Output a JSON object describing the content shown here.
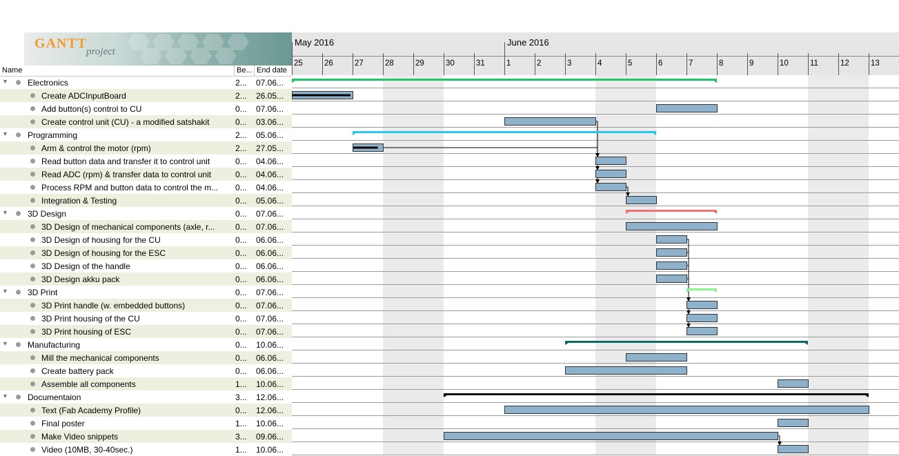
{
  "app": {
    "logo_brand": "GANTT",
    "logo_sub": "project"
  },
  "columns": {
    "name": "Name",
    "begin": "Be...",
    "end": "End date"
  },
  "timeline": {
    "months": [
      "May 2016",
      "June 2016"
    ],
    "days": [
      "25",
      "26",
      "27",
      "28",
      "29",
      "30",
      "31",
      "1",
      "2",
      "3",
      "4",
      "5",
      "6",
      "7",
      "8",
      "9",
      "10",
      "11",
      "12",
      "13"
    ]
  },
  "colors": {
    "row_alt": "#efefdf",
    "weekend": "#ebebeb",
    "task_bar": "#8eb2cb",
    "task_border": "#333333"
  },
  "tasks": [
    {
      "name": "Electronics",
      "begin": "2...",
      "end": "07.06...",
      "group": true,
      "color": "#1ec466",
      "start": 0,
      "stop": 14
    },
    {
      "name": "Create ADCInputBoard",
      "begin": "2...",
      "end": "26.05...",
      "group": false,
      "start": 0,
      "stop": 2,
      "progress": 1.0
    },
    {
      "name": "Add button(s) control to CU",
      "begin": "0...",
      "end": "07.06...",
      "group": false,
      "start": 12,
      "stop": 14
    },
    {
      "name": "Create control unit (CU) - a modified satshakit",
      "begin": "0...",
      "end": "03.06...",
      "group": false,
      "start": 7,
      "stop": 10
    },
    {
      "name": "Programming",
      "begin": "2...",
      "end": "05.06...",
      "group": true,
      "color": "#28c7ee",
      "start": 2,
      "stop": 12
    },
    {
      "name": "Arm & control the motor (rpm)",
      "begin": "2...",
      "end": "27.05...",
      "group": false,
      "start": 2,
      "stop": 3,
      "progress": 0.9
    },
    {
      "name": "Read button data and transfer it to control unit",
      "begin": "0...",
      "end": "04.06...",
      "group": false,
      "start": 10,
      "stop": 11
    },
    {
      "name": "Read ADC (rpm) & transfer data to control unit",
      "begin": "0...",
      "end": "04.06...",
      "group": false,
      "start": 10,
      "stop": 11
    },
    {
      "name": "Process RPM and button data to control the m...",
      "begin": "0...",
      "end": "04.06...",
      "group": false,
      "start": 10,
      "stop": 11
    },
    {
      "name": "Integration & Testing",
      "begin": "0...",
      "end": "05.06...",
      "group": false,
      "start": 11,
      "stop": 12
    },
    {
      "name": "3D Design",
      "begin": "0...",
      "end": "07.06...",
      "group": true,
      "color": "#f07373",
      "start": 11,
      "stop": 14
    },
    {
      "name": "3D Design of mechanical components (axle, r...",
      "begin": "0...",
      "end": "07.06...",
      "group": false,
      "start": 11,
      "stop": 14
    },
    {
      "name": "3D Design of housing for the CU",
      "begin": "0...",
      "end": "06.06...",
      "group": false,
      "start": 12,
      "stop": 13
    },
    {
      "name": "3D Design of housing for the ESC",
      "begin": "0...",
      "end": "06.06...",
      "group": false,
      "start": 12,
      "stop": 13
    },
    {
      "name": "3D Design of the handle",
      "begin": "0...",
      "end": "06.06...",
      "group": false,
      "start": 12,
      "stop": 13
    },
    {
      "name": "3D Design akku pack",
      "begin": "0...",
      "end": "06.06...",
      "group": false,
      "start": 12,
      "stop": 13
    },
    {
      "name": "3D Print",
      "begin": "0...",
      "end": "07.06...",
      "group": true,
      "color": "#8ef28e",
      "start": 13,
      "stop": 14
    },
    {
      "name": "3D Print handle (w. embedded buttons)",
      "begin": "0...",
      "end": "07.06...",
      "group": false,
      "start": 13,
      "stop": 14
    },
    {
      "name": "3D Print housing of the CU",
      "begin": "0...",
      "end": "07.06...",
      "group": false,
      "start": 13,
      "stop": 14
    },
    {
      "name": "3D Print housing of ESC",
      "begin": "0...",
      "end": "07.06...",
      "group": false,
      "start": 13,
      "stop": 14
    },
    {
      "name": "Manufacturing",
      "begin": "0...",
      "end": "10.06...",
      "group": true,
      "color": "#106a64",
      "start": 9,
      "stop": 17
    },
    {
      "name": "Mill the mechanical components",
      "begin": "0...",
      "end": "06.06...",
      "group": false,
      "start": 11,
      "stop": 13
    },
    {
      "name": "Create battery pack",
      "begin": "0...",
      "end": "06.06...",
      "group": false,
      "start": 9,
      "stop": 13
    },
    {
      "name": "Assemble all components",
      "begin": "1...",
      "end": "10.06...",
      "group": false,
      "start": 16,
      "stop": 17
    },
    {
      "name": "Documentaion",
      "begin": "3...",
      "end": "12.06...",
      "group": true,
      "color": "#111111",
      "start": 5,
      "stop": 19
    },
    {
      "name": "Text (Fab Academy Profile)",
      "begin": "0...",
      "end": "12.06...",
      "group": false,
      "start": 7,
      "stop": 19
    },
    {
      "name": "Final poster",
      "begin": "1...",
      "end": "10.06...",
      "group": false,
      "start": 16,
      "stop": 17
    },
    {
      "name": "Make Video snippets",
      "begin": "3...",
      "end": "09.06...",
      "group": false,
      "start": 5,
      "stop": 16
    },
    {
      "name": "Video (10MB, 30-40sec.)",
      "begin": "1...",
      "end": "10.06...",
      "group": false,
      "start": 16,
      "stop": 17
    }
  ],
  "dependencies": [
    [
      3,
      6
    ],
    [
      5,
      6
    ],
    [
      6,
      7
    ],
    [
      7,
      8
    ],
    [
      8,
      9
    ],
    [
      12,
      17
    ],
    [
      13,
      18
    ],
    [
      14,
      19
    ],
    [
      15,
      17
    ],
    [
      27,
      28
    ]
  ]
}
